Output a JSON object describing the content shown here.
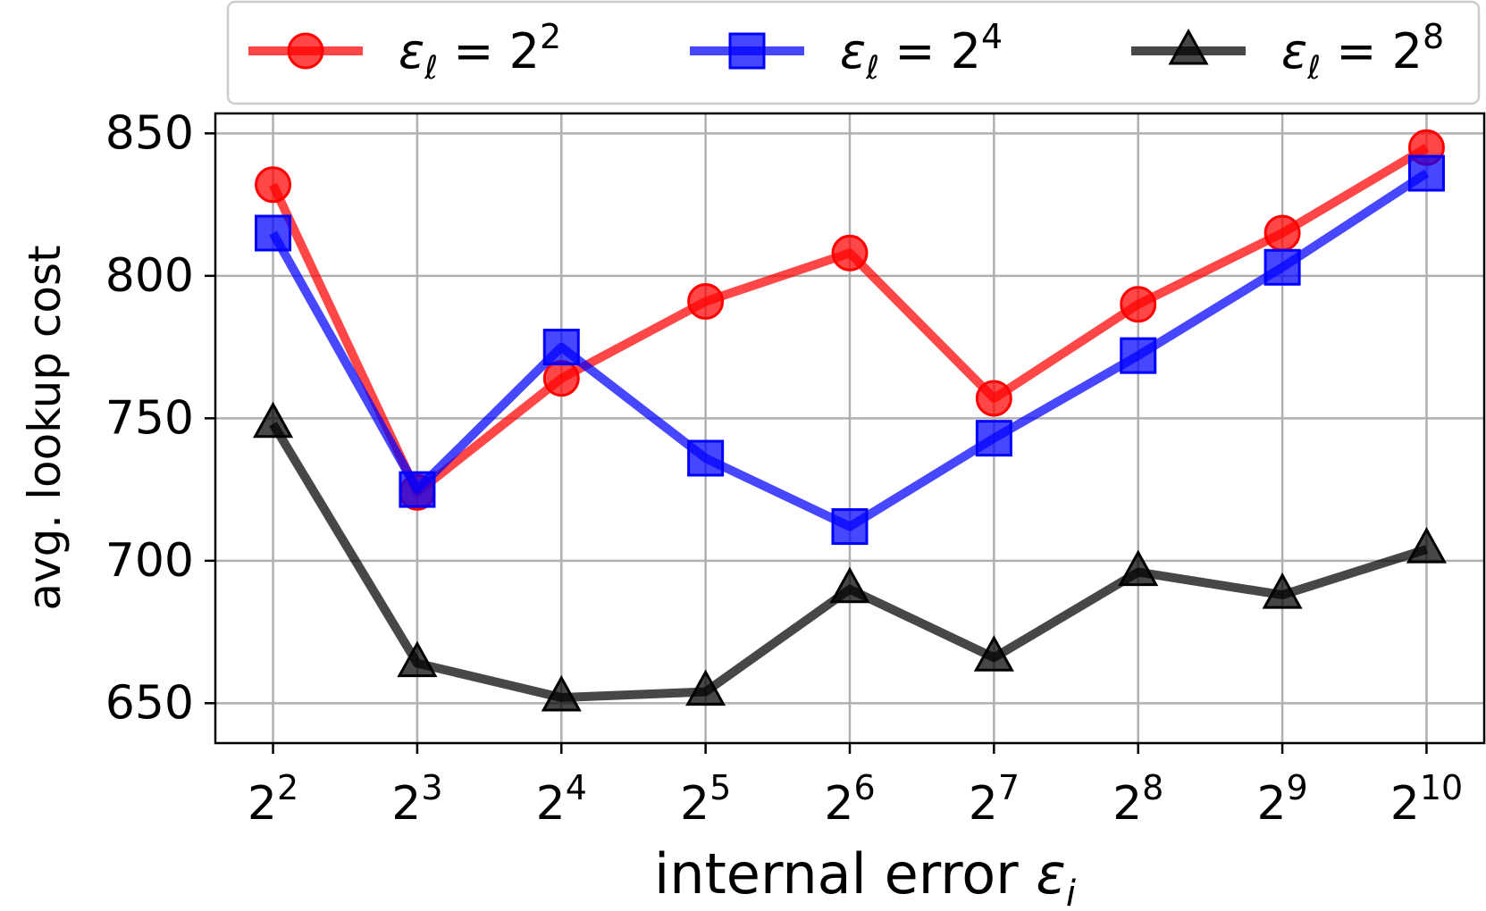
{
  "chart_data": {
    "type": "line",
    "xlabel_text": "internal error ",
    "xlabel_symbol": "ε",
    "xlabel_sub": "i",
    "ylabel": "avg. lookup cost",
    "x_exponents": [
      2,
      3,
      4,
      5,
      6,
      7,
      8,
      9,
      10
    ],
    "x_tick_base": "2",
    "x_tick_exps": [
      "2",
      "3",
      "4",
      "5",
      "6",
      "7",
      "8",
      "9",
      "10"
    ],
    "y_ticks": [
      650,
      700,
      750,
      800,
      850
    ],
    "y_tick_labels": [
      "650",
      "700",
      "750",
      "800",
      "850"
    ],
    "ylim": [
      636,
      857
    ],
    "xlim_exponent": [
      1.6,
      10.4
    ],
    "x_scale": "log2",
    "grid": true,
    "legend_position": "top",
    "series": [
      {
        "legend_symbol": "ε",
        "legend_sub": "ℓ",
        "legend_eq": " = 2",
        "legend_exp": "2",
        "color": "#ff0000",
        "marker": "circle",
        "values": [
          832,
          724,
          764,
          791,
          808,
          757,
          790,
          815,
          845
        ]
      },
      {
        "legend_symbol": "ε",
        "legend_sub": "ℓ",
        "legend_eq": " = 2",
        "legend_exp": "4",
        "color": "#0000ff",
        "marker": "square",
        "values": [
          815,
          725,
          775,
          736,
          712,
          743,
          772,
          803,
          836
        ]
      },
      {
        "legend_symbol": "ε",
        "legend_sub": "ℓ",
        "legend_eq": " = 2",
        "legend_exp": "8",
        "color": "#000000",
        "marker": "triangle",
        "values": [
          748,
          664,
          652,
          654,
          690,
          666,
          696,
          688,
          704
        ]
      }
    ]
  }
}
